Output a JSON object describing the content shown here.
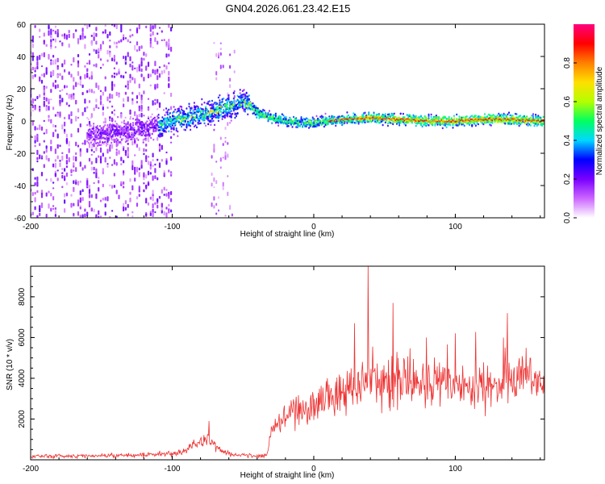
{
  "title": "GN04.2026.061.23.42.E15",
  "chart_data": [
    {
      "type": "heatmap",
      "title": "GN04.2026.061.23.42.E15",
      "xlabel": "Height of straight line (km)",
      "ylabel": "Frequency (Hz)",
      "xlim": [
        -200,
        163
      ],
      "ylim": [
        -60,
        60
      ],
      "xticks": [
        -200,
        -100,
        0,
        100
      ],
      "yticks": [
        60,
        40,
        20,
        0,
        -20,
        -40,
        -60
      ],
      "ridge": {
        "description": "Dominant spectral ridge (Hz) vs height",
        "x": [
          -150,
          -130,
          -110,
          -100,
          -90,
          -80,
          -70,
          -60,
          -50,
          -45,
          -40,
          -30,
          -20,
          -10,
          0,
          20,
          40,
          60,
          80,
          100,
          120,
          140,
          160
        ],
        "y": [
          -8,
          -6,
          -3,
          0,
          2,
          4,
          6,
          9,
          12,
          10,
          5,
          2,
          0,
          -1,
          -1,
          1,
          2,
          1,
          0,
          0,
          1,
          1,
          0
        ]
      },
      "noise_region": {
        "from": -200,
        "to": -100,
        "gap_from": -100,
        "gap_to": -72,
        "secondary_from": -72,
        "secondary_to": -55
      },
      "colorbar": {
        "label": "Normalized spectral amplitude",
        "ticks": [
          "0.0",
          "0.2",
          "0.4",
          "0.6",
          "0.8"
        ],
        "range": [
          0,
          1
        ],
        "colors": [
          "#ffffff",
          "#cc66ff",
          "#7a00ff",
          "#0000ff",
          "#00d8ff",
          "#00ff60",
          "#b4ff00",
          "#ffe000",
          "#ff8000",
          "#ff0000",
          "#ff0080"
        ]
      }
    },
    {
      "type": "line",
      "xlabel": "Height of straight line (km)",
      "ylabel": "SNR (10 * v/v)",
      "xlim": [
        -200,
        163
      ],
      "ylim": [
        0,
        9500
      ],
      "xticks": [
        -200,
        -100,
        0,
        100
      ],
      "yticks": [
        2000,
        4000,
        6000,
        8000
      ],
      "color": "#ee3333",
      "envelope": {
        "x": [
          -200,
          -150,
          -120,
          -100,
          -90,
          -80,
          -75,
          -70,
          -65,
          -60,
          -50,
          -40,
          -33,
          -30,
          -20,
          -10,
          0,
          10,
          20,
          30,
          40,
          50,
          60,
          80,
          100,
          120,
          140,
          150,
          160,
          163
        ],
        "mean": [
          180,
          200,
          250,
          300,
          500,
          900,
          1000,
          800,
          450,
          280,
          220,
          200,
          250,
          1400,
          2100,
          2500,
          2700,
          3000,
          3300,
          3600,
          3900,
          4000,
          3900,
          3700,
          3600,
          3700,
          3900,
          4000,
          3700,
          3800
        ],
        "spread": [
          100,
          110,
          130,
          160,
          200,
          320,
          350,
          300,
          200,
          130,
          100,
          90,
          120,
          500,
          700,
          800,
          900,
          1000,
          1100,
          1200,
          1300,
          1300,
          1300,
          1200,
          1100,
          1100,
          1200,
          1300,
          1200,
          1200
        ]
      },
      "peaks": [
        {
          "x": 38.5,
          "y": 9500
        },
        {
          "x": 56,
          "y": 7700
        },
        {
          "x": 29,
          "y": 6700
        },
        {
          "x": 137,
          "y": 7200
        },
        {
          "x": -74,
          "y": 1900
        }
      ]
    }
  ]
}
